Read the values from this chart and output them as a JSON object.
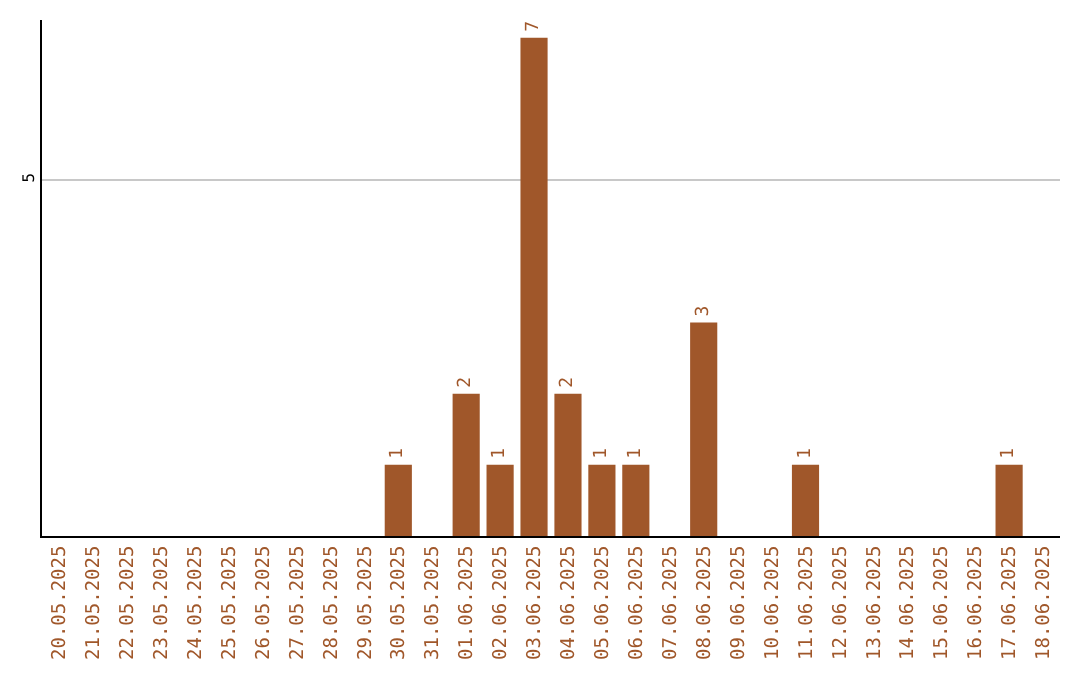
{
  "chart_data": {
    "type": "bar",
    "categories": [
      "20.05.2025",
      "21.05.2025",
      "22.05.2025",
      "23.05.2025",
      "24.05.2025",
      "25.05.2025",
      "26.05.2025",
      "27.05.2025",
      "28.05.2025",
      "29.05.2025",
      "30.05.2025",
      "31.05.2025",
      "01.06.2025",
      "02.06.2025",
      "03.06.2025",
      "04.06.2025",
      "05.06.2025",
      "06.06.2025",
      "07.06.2025",
      "08.06.2025",
      "09.06.2025",
      "10.06.2025",
      "11.06.2025",
      "12.06.2025",
      "13.06.2025",
      "14.06.2025",
      "15.06.2025",
      "16.06.2025",
      "17.06.2025",
      "18.06.2025"
    ],
    "values": [
      0,
      0,
      0,
      0,
      0,
      0,
      0,
      0,
      0,
      0,
      1,
      0,
      2,
      1,
      7,
      2,
      1,
      1,
      0,
      3,
      0,
      0,
      1,
      0,
      0,
      0,
      0,
      0,
      1,
      0
    ],
    "value_labels": [
      null,
      null,
      null,
      null,
      null,
      null,
      null,
      null,
      null,
      null,
      "1",
      null,
      "2",
      "1",
      "7",
      "2",
      "1",
      "1",
      null,
      "3",
      null,
      null,
      "1",
      null,
      null,
      null,
      null,
      null,
      "1",
      null
    ],
    "color": "#a0572a",
    "ylim": [
      0,
      7.25
    ],
    "yticks": [
      5
    ],
    "grid": "y"
  }
}
